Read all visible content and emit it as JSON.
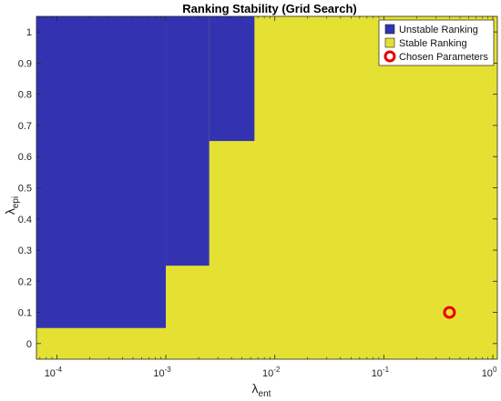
{
  "chart_data": {
    "type": "heatmap",
    "title": "Ranking Stability (Grid Search)",
    "xlabel": {
      "base": "λ",
      "sub": "ent"
    },
    "ylabel": {
      "base": "λ",
      "sub": "epi"
    },
    "x_scale": "log",
    "xlim": [
      6.5e-05,
      1.1
    ],
    "ylim": [
      -0.05,
      1.05
    ],
    "x_ticks": [
      {
        "value": 0.0001,
        "label": "10",
        "exp": "-4"
      },
      {
        "value": 0.001,
        "label": "10",
        "exp": "-3"
      },
      {
        "value": 0.01,
        "label": "10",
        "exp": "-2"
      },
      {
        "value": 0.1,
        "label": "10",
        "exp": "-1"
      },
      {
        "value": 1,
        "label": "10",
        "exp": "0"
      }
    ],
    "y_ticks": [
      {
        "value": 0,
        "label": "0"
      },
      {
        "value": 0.1,
        "label": "0.1"
      },
      {
        "value": 0.2,
        "label": "0.2"
      },
      {
        "value": 0.3,
        "label": "0.3"
      },
      {
        "value": 0.4,
        "label": "0.4"
      },
      {
        "value": 0.5,
        "label": "0.5"
      },
      {
        "value": 0.6,
        "label": "0.6"
      },
      {
        "value": 0.7,
        "label": "0.7"
      },
      {
        "value": 0.8,
        "label": "0.8"
      },
      {
        "value": 0.9,
        "label": "0.9"
      },
      {
        "value": 1,
        "label": "1"
      }
    ],
    "grid": false,
    "stable_color": "#e5e132",
    "unstable_color": "#3333b2",
    "marker_color": "#e60000",
    "unstable_regions": [
      {
        "x0": 6.5e-05,
        "x1": 0.001,
        "y0": 0.05,
        "y1": 1.05
      },
      {
        "x0": 0.001,
        "x1": 0.0025,
        "y0": 0.25,
        "y1": 1.05
      },
      {
        "x0": 0.0025,
        "x1": 0.0065,
        "y0": 0.65,
        "y1": 1.05
      }
    ],
    "chosen_point": {
      "x": 0.4,
      "y": 0.1
    },
    "legend": {
      "placement": "top-right",
      "items": [
        {
          "label": "Unstable Ranking",
          "kind": "unstable"
        },
        {
          "label": "Stable Ranking",
          "kind": "stable"
        },
        {
          "label": "Chosen Parameters",
          "kind": "marker"
        }
      ]
    }
  }
}
